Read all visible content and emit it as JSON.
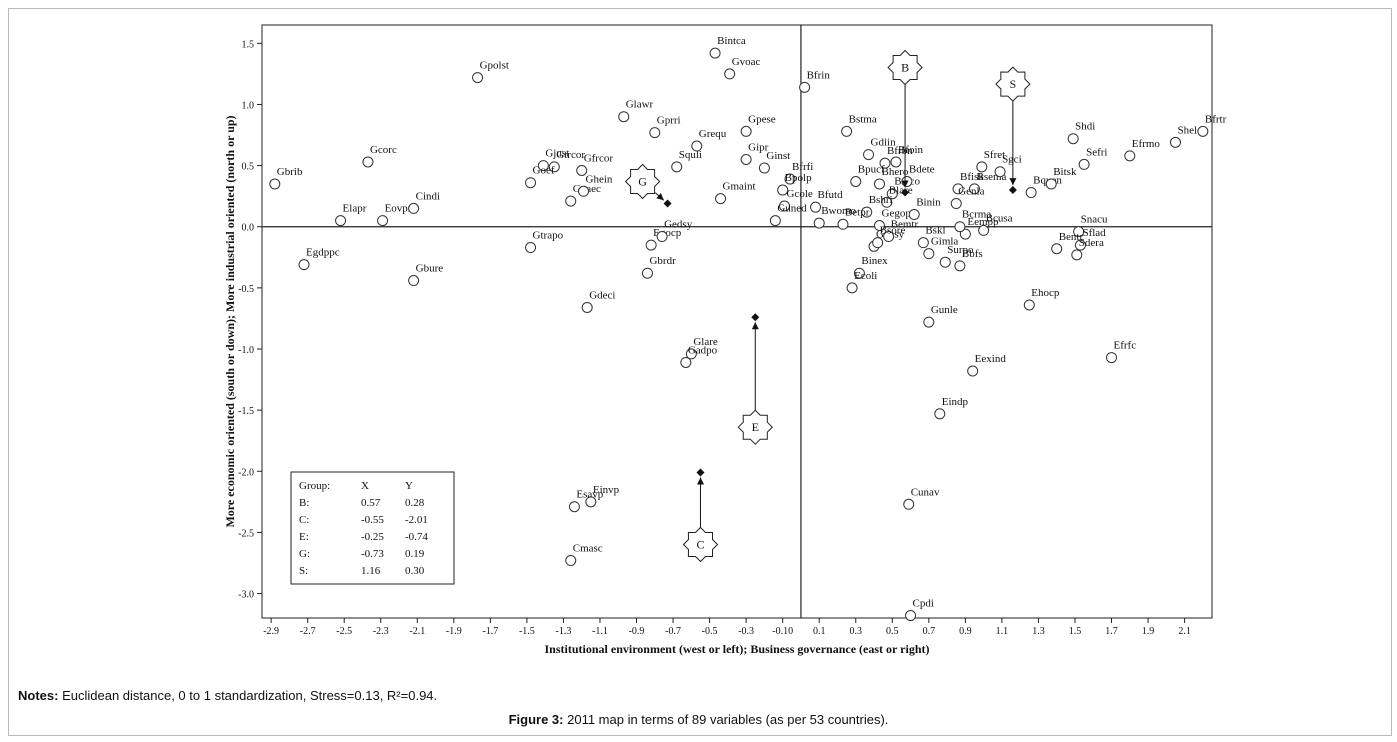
{
  "notes": {
    "label": "Notes:",
    "text": "Euclidean distance, 0 to 1 standardization, Stress=0.13, R²=0.94."
  },
  "caption": {
    "label": "Figure 3:",
    "text": "2011 map in terms of 89 variables (as per 53 countries)."
  },
  "chart_data": {
    "type": "scatter",
    "xlabel": "Institutional environment (west or left); Business governance (east or right)",
    "ylabel": "More economic oriented (south or down); More industrial oriented (north or up)",
    "xlim": [
      -2.95,
      2.25
    ],
    "ylim": [
      -3.2,
      1.65
    ],
    "x_ticks": [
      -2.9,
      -2.7,
      -2.5,
      -2.3,
      -2.1,
      -1.9,
      -1.7,
      -1.5,
      -1.3,
      -1.1,
      -0.9,
      -0.7,
      -0.5,
      -0.3,
      -0.1,
      0.1,
      0.3,
      0.5,
      0.7,
      0.9,
      1.1,
      1.3,
      1.5,
      1.7,
      1.9,
      2.1
    ],
    "x_tick_labels": [
      "-2.9",
      "-2.7",
      "-2.5",
      "-2.3",
      "-2.1",
      "-1.9",
      "-1.7",
      "-1.5",
      "-1.3",
      "-1.1",
      "-0.9",
      "-0.7",
      "-0.5",
      "-0.3",
      "-0.10",
      "0.1",
      "0.3",
      "0.5",
      "0.7",
      "0.9",
      "1.1",
      "1.3",
      "1.5",
      "1.7",
      "1.9",
      "2.1"
    ],
    "y_ticks": [
      1.5,
      1.0,
      0.5,
      0.0,
      -0.5,
      -1.0,
      -1.5,
      -2.0,
      -2.5,
      -3.0
    ],
    "y_tick_labels": [
      "1.5",
      "1.0",
      "0.5",
      "0.0",
      "-0.5",
      "-1.0",
      "-1.5",
      "-2.0",
      "-2.5",
      "-3.0"
    ],
    "points": [
      {
        "label": "Gbrib",
        "x": -2.88,
        "y": 0.35
      },
      {
        "label": "Gcorc",
        "x": -2.37,
        "y": 0.53
      },
      {
        "label": "Elapr",
        "x": -2.52,
        "y": 0.05
      },
      {
        "label": "Eovpr",
        "x": -2.29,
        "y": 0.05
      },
      {
        "label": "Cindi",
        "x": -2.12,
        "y": 0.15
      },
      {
        "label": "Egdppc",
        "x": -2.72,
        "y": -0.31
      },
      {
        "label": "Gbure",
        "x": -2.12,
        "y": -0.44
      },
      {
        "label": "Gpolst",
        "x": -1.77,
        "y": 1.22
      },
      {
        "label": "Gjust",
        "x": -1.41,
        "y": 0.5
      },
      {
        "label": "Gtrcor",
        "x": -1.35,
        "y": 0.49
      },
      {
        "label": "Goef",
        "x": -1.48,
        "y": 0.36
      },
      {
        "label": "Gpaec",
        "x": -1.26,
        "y": 0.21
      },
      {
        "label": "Gfrcor",
        "x": -1.2,
        "y": 0.46
      },
      {
        "label": "Ghein",
        "x": -1.19,
        "y": 0.29
      },
      {
        "label": "Gtrapo",
        "x": -1.48,
        "y": -0.17
      },
      {
        "label": "Glawr",
        "x": -0.97,
        "y": 0.9
      },
      {
        "label": "Gprri",
        "x": -0.8,
        "y": 0.77
      },
      {
        "label": "Squli",
        "x": -0.68,
        "y": 0.49
      },
      {
        "label": "Grequ",
        "x": -0.57,
        "y": 0.66
      },
      {
        "label": "Egocp",
        "x": -0.82,
        "y": -0.15
      },
      {
        "label": "Gedsy",
        "x": -0.76,
        "y": -0.08
      },
      {
        "label": "Gbrdr",
        "x": -0.84,
        "y": -0.38
      },
      {
        "label": "Gdeci",
        "x": -1.17,
        "y": -0.66
      },
      {
        "label": "Bintca",
        "x": -0.47,
        "y": 1.42
      },
      {
        "label": "Gvoac",
        "x": -0.39,
        "y": 1.25
      },
      {
        "label": "Gpese",
        "x": -0.3,
        "y": 0.78
      },
      {
        "label": "Gipr",
        "x": -0.3,
        "y": 0.55
      },
      {
        "label": "Ginst",
        "x": -0.2,
        "y": 0.48
      },
      {
        "label": "Gmaint",
        "x": -0.44,
        "y": 0.23
      },
      {
        "label": "Gcole",
        "x": -0.09,
        "y": 0.17
      },
      {
        "label": "Guned",
        "x": -0.14,
        "y": 0.05
      },
      {
        "label": "Bfrfi",
        "x": -0.06,
        "y": 0.39
      },
      {
        "label": "Bpolp",
        "x": -0.1,
        "y": 0.3
      },
      {
        "label": "Bfrin",
        "x": 0.02,
        "y": 1.14
      },
      {
        "label": "Bstma",
        "x": 0.25,
        "y": 0.78
      },
      {
        "label": "Gdiin",
        "x": 0.37,
        "y": 0.59
      },
      {
        "label": "Bfoin",
        "x": 0.52,
        "y": 0.53
      },
      {
        "label": "Bfrbn",
        "x": 0.46,
        "y": 0.52
      },
      {
        "label": "Bpucf",
        "x": 0.3,
        "y": 0.37
      },
      {
        "label": "Bhero",
        "x": 0.43,
        "y": 0.35
      },
      {
        "label": "Bteco",
        "x": 0.5,
        "y": 0.27
      },
      {
        "label": "Blare",
        "x": 0.47,
        "y": 0.2
      },
      {
        "label": "Bdete",
        "x": 0.58,
        "y": 0.37
      },
      {
        "label": "Bshri",
        "x": 0.36,
        "y": 0.12
      },
      {
        "label": "Gegop",
        "x": 0.43,
        "y": 0.01
      },
      {
        "label": "Bfutd",
        "x": 0.08,
        "y": 0.16
      },
      {
        "label": "Bwomo",
        "x": 0.1,
        "y": 0.03
      },
      {
        "label": "Betpr",
        "x": 0.23,
        "y": 0.02
      },
      {
        "label": "Binin",
        "x": 0.62,
        "y": 0.1
      },
      {
        "label": "Gvasy",
        "x": 0.4,
        "y": -0.16
      },
      {
        "label": "Bemtr",
        "x": 0.48,
        "y": -0.08
      },
      {
        "label": "Bsore",
        "x": 0.42,
        "y": -0.13
      },
      {
        "label": "Bskl",
        "x": 0.67,
        "y": -0.13
      },
      {
        "label": "Binex",
        "x": 0.32,
        "y": -0.38
      },
      {
        "label": "Ecoli",
        "x": 0.28,
        "y": -0.5
      },
      {
        "label": "Surpo",
        "x": 0.79,
        "y": -0.29
      },
      {
        "label": "Bbfs",
        "x": 0.87,
        "y": -0.32
      },
      {
        "label": "Gimla",
        "x": 0.7,
        "y": -0.22
      },
      {
        "label": "Eempp",
        "x": 0.9,
        "y": -0.06
      },
      {
        "label": "Sfret",
        "x": 0.99,
        "y": 0.49
      },
      {
        "label": "Bfisk",
        "x": 0.86,
        "y": 0.31
      },
      {
        "label": "Bsema",
        "x": 0.95,
        "y": 0.31
      },
      {
        "label": "Sgci",
        "x": 1.09,
        "y": 0.45
      },
      {
        "label": "Genla",
        "x": 0.85,
        "y": 0.19
      },
      {
        "label": "Bcrma",
        "x": 0.87,
        "y": 0.0
      },
      {
        "label": "Bcusa",
        "x": 1.0,
        "y": -0.03
      },
      {
        "label": "Bquen",
        "x": 1.26,
        "y": 0.28
      },
      {
        "label": "Bitsk",
        "x": 1.37,
        "y": 0.35
      },
      {
        "label": "Shdi",
        "x": 1.49,
        "y": 0.72
      },
      {
        "label": "Sefri",
        "x": 1.55,
        "y": 0.51
      },
      {
        "label": "Efrmo",
        "x": 1.8,
        "y": 0.58
      },
      {
        "label": "Shele",
        "x": 2.05,
        "y": 0.69
      },
      {
        "label": "Bfrtr",
        "x": 2.2,
        "y": 0.78
      },
      {
        "label": "Snacu",
        "x": 1.52,
        "y": -0.04
      },
      {
        "label": "Sflad",
        "x": 1.53,
        "y": -0.15
      },
      {
        "label": "Sdera",
        "x": 1.51,
        "y": -0.23
      },
      {
        "label": "Bentr",
        "x": 1.4,
        "y": -0.18
      },
      {
        "label": "Ehocp",
        "x": 1.25,
        "y": -0.64
      },
      {
        "label": "Gunle",
        "x": 0.7,
        "y": -0.78
      },
      {
        "label": "Eexind",
        "x": 0.94,
        "y": -1.18
      },
      {
        "label": "Efrfc",
        "x": 1.7,
        "y": -1.07
      },
      {
        "label": "Eindp",
        "x": 0.76,
        "y": -1.53
      },
      {
        "label": "Glare",
        "x": -0.6,
        "y": -1.04
      },
      {
        "label": "Gadpo",
        "x": -0.63,
        "y": -1.11
      },
      {
        "label": "Einvp",
        "x": -1.15,
        "y": -2.25
      },
      {
        "label": "Esavp",
        "x": -1.24,
        "y": -2.29
      },
      {
        "label": "Cmasc",
        "x": -1.26,
        "y": -2.73
      },
      {
        "label": "Cunav",
        "x": 0.59,
        "y": -2.27
      },
      {
        "label": "Cpdi",
        "x": 0.6,
        "y": -3.18
      }
    ],
    "centroids": [
      {
        "name": "B",
        "x": 0.57,
        "y": 0.28
      },
      {
        "name": "C",
        "x": -0.55,
        "y": -2.01
      },
      {
        "name": "E",
        "x": -0.25,
        "y": -0.74
      },
      {
        "name": "G",
        "x": -0.73,
        "y": 0.19
      },
      {
        "name": "S",
        "x": 1.16,
        "y": 0.3
      }
    ],
    "group_table": {
      "headers": [
        "Group:",
        "X",
        "Y"
      ],
      "rows": [
        [
          "B:",
          "0.57",
          "0.28"
        ],
        [
          "C:",
          "-0.55",
          "-2.01"
        ],
        [
          "E:",
          "-0.25",
          "-0.74"
        ],
        [
          "G:",
          "-0.73",
          "0.19"
        ],
        [
          "S:",
          "1.16",
          "0.30"
        ]
      ]
    },
    "grid": false,
    "marker": "open-circle"
  }
}
